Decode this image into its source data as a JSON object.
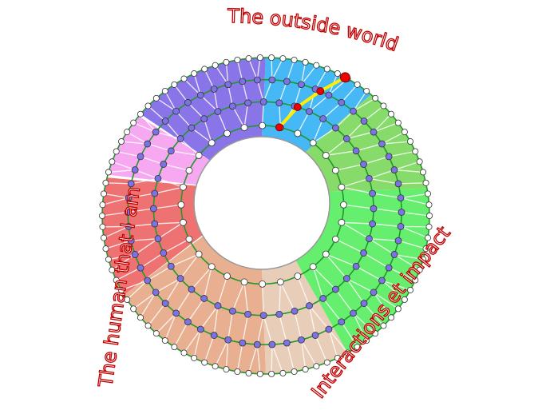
{
  "labels": {
    "top": "The outside world",
    "left": "The human that I am",
    "right": "Interactions et impact"
  },
  "colors": {
    "ring_line": "#1f9a2a",
    "spoke": "#ffffff",
    "inner_node": "#7b72e6",
    "edge_node": "#ffffff",
    "path": "#ffee00",
    "path_node": "#ee0000",
    "label": "#c00000"
  },
  "sectors": [
    {
      "color": "#45b8f5"
    },
    {
      "color": "#86db6a"
    },
    {
      "color": "#66ee6e"
    },
    {
      "color": "#e8cdb8"
    },
    {
      "color": "#e8b090"
    },
    {
      "color": "#ef7272"
    },
    {
      "color": "#f6a8f0"
    },
    {
      "color": "#8a75e8"
    }
  ]
}
